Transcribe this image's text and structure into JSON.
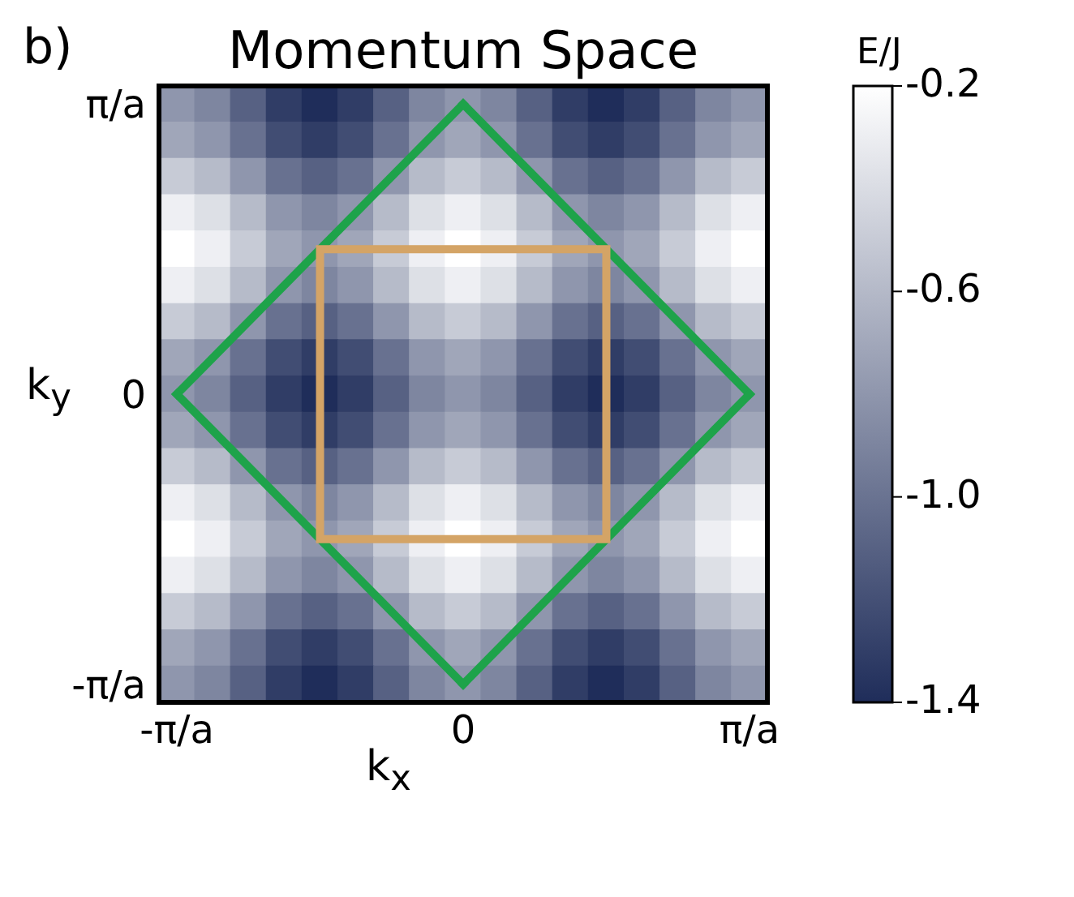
{
  "chart_data": {
    "type": "heatmap",
    "title": "Momentum Space",
    "xlabel": "k$_{x}$",
    "ylabel": "k$_{y}$",
    "clabel": "E/J",
    "annotations": [
      "b)"
    ],
    "categories": [
      "-π/a",
      null,
      null,
      null,
      null,
      null,
      null,
      null,
      "0",
      null,
      null,
      null,
      null,
      null,
      null,
      null,
      "π/a"
    ],
    "y_categories": [
      "π/a",
      null,
      null,
      null,
      null,
      null,
      null,
      null,
      "0",
      null,
      null,
      null,
      null,
      null,
      null,
      null,
      "-π/a"
    ],
    "clim": [
      -1.4,
      -0.2
    ],
    "cticks": [
      -0.2,
      -0.6,
      {
        "value": -1,
        "label": "-1.0"
      },
      -1.4
    ],
    "cells": [
      [
        -0.8,
        -0.89,
        -1.1,
        -1.31,
        -1.4,
        -1.31,
        -1.1,
        -0.89,
        -0.8,
        -0.89,
        -1.1,
        -1.31,
        -1.4,
        -1.31,
        -1.1,
        -0.89,
        -0.8
      ],
      [
        -0.71,
        -0.8,
        -1.01,
        -1.22,
        -1.31,
        -1.22,
        -1.01,
        -0.8,
        -0.71,
        -0.8,
        -1.01,
        -1.22,
        -1.31,
        -1.22,
        -1.01,
        -0.8,
        -0.71
      ],
      [
        -0.5,
        -0.59,
        -0.8,
        -1.01,
        -1.1,
        -1.01,
        -0.8,
        -0.59,
        -0.5,
        -0.59,
        -0.8,
        -1.01,
        -1.1,
        -1.01,
        -0.8,
        -0.59,
        -0.5
      ],
      [
        -0.29,
        -0.38,
        -0.59,
        -0.8,
        -0.89,
        -0.8,
        -0.59,
        -0.38,
        -0.29,
        -0.38,
        -0.59,
        -0.8,
        -0.89,
        -0.8,
        -0.59,
        -0.38,
        -0.29
      ],
      [
        -0.2,
        -0.29,
        -0.5,
        -0.71,
        -0.8,
        -0.71,
        -0.5,
        -0.29,
        -0.2,
        -0.29,
        -0.5,
        -0.71,
        -0.8,
        -0.71,
        -0.5,
        -0.29,
        -0.2
      ],
      [
        -0.29,
        -0.38,
        -0.59,
        -0.8,
        -0.89,
        -0.8,
        -0.59,
        -0.38,
        -0.29,
        -0.38,
        -0.59,
        -0.8,
        -0.89,
        -0.8,
        -0.59,
        -0.38,
        -0.29
      ],
      [
        -0.5,
        -0.59,
        -0.8,
        -1.01,
        -1.1,
        -1.01,
        -0.8,
        -0.59,
        -0.5,
        -0.59,
        -0.8,
        -1.01,
        -1.1,
        -1.01,
        -0.8,
        -0.59,
        -0.5
      ],
      [
        -0.71,
        -0.8,
        -1.01,
        -1.22,
        -1.31,
        -1.22,
        -1.01,
        -0.8,
        -0.71,
        -0.8,
        -1.01,
        -1.22,
        -1.31,
        -1.22,
        -1.01,
        -0.8,
        -0.71
      ],
      [
        -0.8,
        -0.89,
        -1.1,
        -1.31,
        -1.4,
        -1.31,
        -1.1,
        -0.89,
        -0.8,
        -0.89,
        -1.1,
        -1.31,
        -1.4,
        -1.31,
        -1.1,
        -0.89,
        -0.8
      ],
      [
        -0.71,
        -0.8,
        -1.01,
        -1.22,
        -1.31,
        -1.22,
        -1.01,
        -0.8,
        -0.71,
        -0.8,
        -1.01,
        -1.22,
        -1.31,
        -1.22,
        -1.01,
        -0.8,
        -0.71
      ],
      [
        -0.5,
        -0.59,
        -0.8,
        -1.01,
        -1.1,
        -1.01,
        -0.8,
        -0.59,
        -0.5,
        -0.59,
        -0.8,
        -1.01,
        -1.1,
        -1.01,
        -0.8,
        -0.59,
        -0.5
      ],
      [
        -0.29,
        -0.38,
        -0.59,
        -0.8,
        -0.89,
        -0.8,
        -0.59,
        -0.38,
        -0.29,
        -0.38,
        -0.59,
        -0.8,
        -0.89,
        -0.8,
        -0.59,
        -0.38,
        -0.29
      ],
      [
        -0.2,
        -0.29,
        -0.5,
        -0.71,
        -0.8,
        -0.71,
        -0.5,
        -0.29,
        -0.2,
        -0.29,
        -0.5,
        -0.71,
        -0.8,
        -0.71,
        -0.5,
        -0.29,
        -0.2
      ],
      [
        -0.29,
        -0.38,
        -0.59,
        -0.8,
        -0.89,
        -0.8,
        -0.59,
        -0.38,
        -0.29,
        -0.38,
        -0.59,
        -0.8,
        -0.89,
        -0.8,
        -0.59,
        -0.38,
        -0.29
      ],
      [
        -0.5,
        -0.59,
        -0.8,
        -1.01,
        -1.1,
        -1.01,
        -0.8,
        -0.59,
        -0.5,
        -0.59,
        -0.8,
        -1.01,
        -1.1,
        -1.01,
        -0.8,
        -0.59,
        -0.5
      ],
      [
        -0.71,
        -0.8,
        -1.01,
        -1.22,
        -1.31,
        -1.22,
        -1.01,
        -0.8,
        -0.71,
        -0.8,
        -1.01,
        -1.22,
        -1.31,
        -1.22,
        -1.01,
        -0.8,
        -0.71
      ],
      [
        -0.8,
        -0.89,
        -1.1,
        -1.31,
        -1.4,
        -1.31,
        -1.1,
        -0.89,
        -0.8,
        -0.89,
        -1.1,
        -1.31,
        -1.4,
        -1.31,
        -1.1,
        -0.89,
        -0.8
      ]
    ]
  }
}
